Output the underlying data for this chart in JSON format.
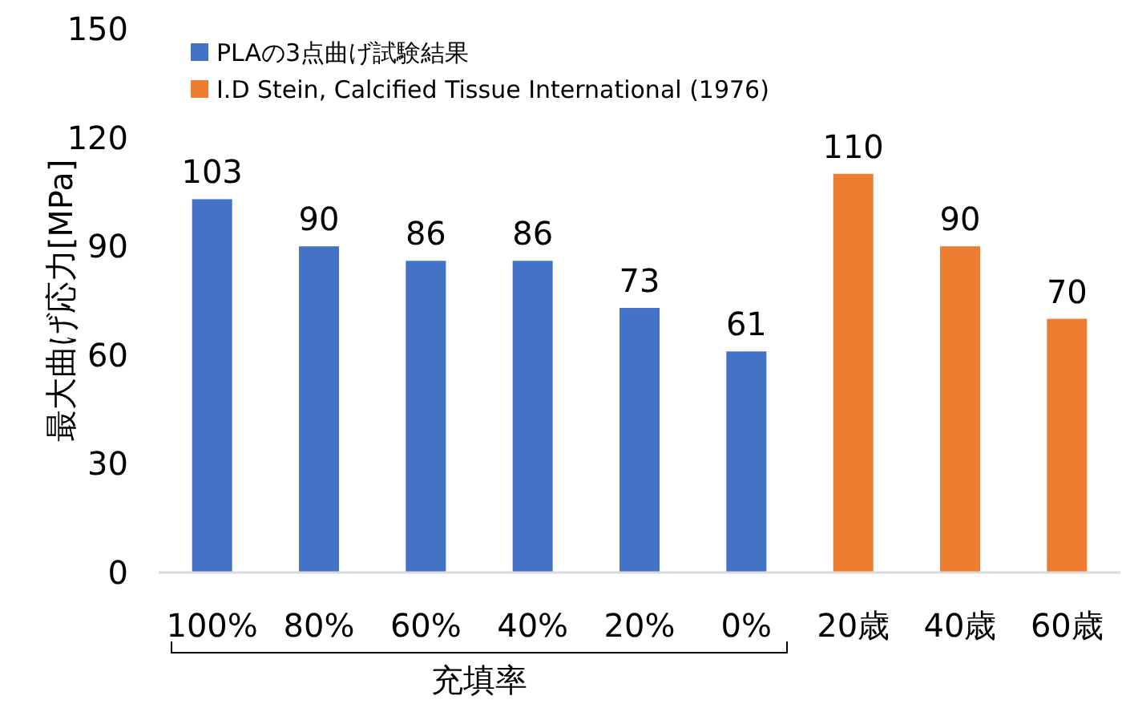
{
  "chart_data": {
    "type": "bar",
    "categories": [
      "100%",
      "80%",
      "60%",
      "40%",
      "20%",
      "0%",
      "20歳",
      "40歳",
      "60歳"
    ],
    "series": [
      {
        "name": "PLAの3点曲げ試験結果",
        "color": "#4472c4",
        "values": [
          103,
          90,
          86,
          86,
          73,
          61,
          null,
          null,
          null
        ]
      },
      {
        "name": "I.D Stein, Calcified Tissue International (1976)",
        "color": "#ed7d31",
        "values": [
          null,
          null,
          null,
          null,
          null,
          null,
          110,
          90,
          70
        ]
      }
    ],
    "ylabel": "最大曲げ応力[MPa]",
    "xlabel": "充填率",
    "ylim": [
      0,
      150
    ],
    "yticks": [
      0,
      30,
      60,
      90,
      120,
      150
    ],
    "data_labels": true,
    "legend": "top left"
  }
}
